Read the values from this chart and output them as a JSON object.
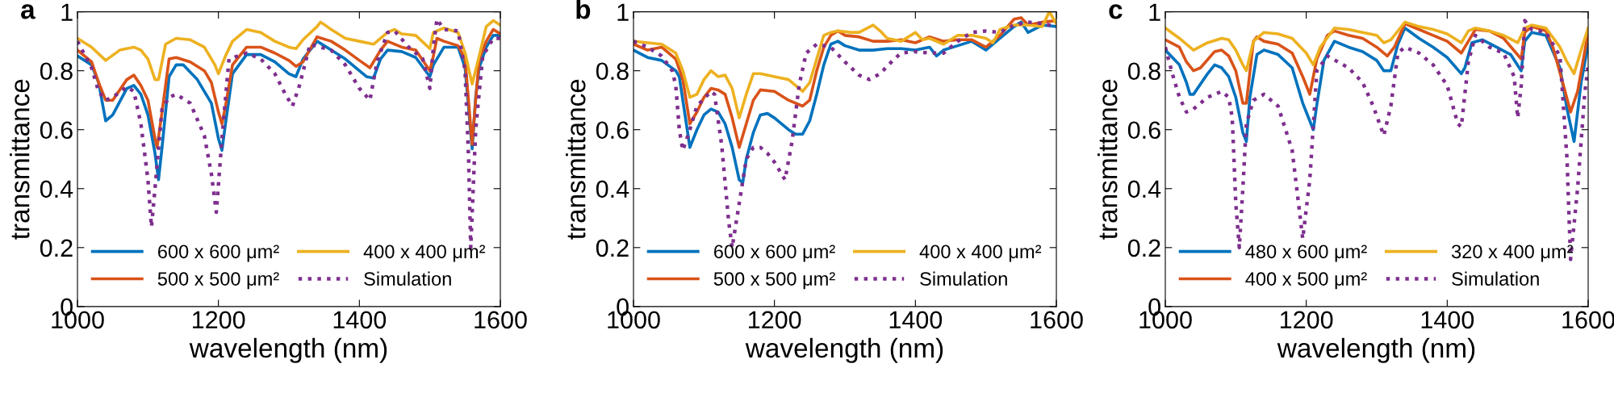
{
  "chart_data": [
    {
      "type": "line",
      "title": "a",
      "xlabel": "wavelength (nm)",
      "ylabel": "transmittance",
      "xlim": [
        1000,
        1600
      ],
      "xticks": [
        1000,
        1200,
        1400,
        1600
      ],
      "ylim": [
        0,
        1
      ],
      "yticks": [
        0,
        0.2,
        0.4,
        0.6,
        0.8,
        1
      ],
      "grid": false,
      "legend": "bottom",
      "series": [
        {
          "name": "600 x 600 μm²",
          "color": "#0072bd",
          "line_style": "solid",
          "x": [
            1000,
            1020,
            1030,
            1040,
            1050,
            1070,
            1080,
            1090,
            1100,
            1110,
            1115,
            1120,
            1130,
            1140,
            1150,
            1170,
            1190,
            1200,
            1205,
            1210,
            1220,
            1240,
            1260,
            1280,
            1300,
            1310,
            1320,
            1340,
            1360,
            1380,
            1400,
            1410,
            1420,
            1430,
            1440,
            1460,
            1480,
            1500,
            1505,
            1520,
            1540,
            1550,
            1560,
            1565,
            1570,
            1580,
            1590,
            1600
          ],
          "values": [
            0.85,
            0.82,
            0.76,
            0.63,
            0.65,
            0.74,
            0.75,
            0.72,
            0.65,
            0.52,
            0.43,
            0.54,
            0.78,
            0.82,
            0.82,
            0.77,
            0.69,
            0.57,
            0.53,
            0.62,
            0.79,
            0.855,
            0.855,
            0.83,
            0.79,
            0.78,
            0.84,
            0.9,
            0.87,
            0.84,
            0.8,
            0.78,
            0.775,
            0.84,
            0.87,
            0.865,
            0.845,
            0.78,
            0.82,
            0.88,
            0.88,
            0.81,
            0.535,
            0.71,
            0.81,
            0.88,
            0.92,
            0.92
          ]
        },
        {
          "name": "500 x 500 μm²",
          "color": "#d95319",
          "line_style": "solid",
          "x": [
            1000,
            1020,
            1030,
            1040,
            1050,
            1070,
            1080,
            1090,
            1100,
            1110,
            1113,
            1120,
            1130,
            1140,
            1160,
            1180,
            1190,
            1200,
            1205,
            1210,
            1220,
            1240,
            1260,
            1280,
            1300,
            1310,
            1320,
            1340,
            1360,
            1380,
            1400,
            1415,
            1430,
            1440,
            1460,
            1480,
            1500,
            1505,
            1510,
            1520,
            1540,
            1550,
            1560,
            1565,
            1570,
            1580,
            1590,
            1600
          ],
          "values": [
            0.87,
            0.83,
            0.76,
            0.7,
            0.7,
            0.77,
            0.785,
            0.75,
            0.7,
            0.57,
            0.54,
            0.66,
            0.84,
            0.845,
            0.83,
            0.8,
            0.76,
            0.66,
            0.62,
            0.68,
            0.82,
            0.88,
            0.88,
            0.86,
            0.835,
            0.815,
            0.83,
            0.915,
            0.9,
            0.87,
            0.835,
            0.81,
            0.87,
            0.9,
            0.88,
            0.87,
            0.8,
            0.85,
            0.91,
            0.9,
            0.885,
            0.84,
            0.55,
            0.7,
            0.84,
            0.9,
            0.94,
            0.925
          ]
        },
        {
          "name": "400 x 400 μm²",
          "color": "#edb120",
          "line_style": "solid",
          "x": [
            1000,
            1020,
            1040,
            1060,
            1080,
            1090,
            1100,
            1110,
            1115,
            1125,
            1140,
            1160,
            1180,
            1195,
            1200,
            1210,
            1220,
            1240,
            1260,
            1280,
            1300,
            1310,
            1320,
            1340,
            1345,
            1360,
            1380,
            1400,
            1420,
            1440,
            1450,
            1460,
            1480,
            1500,
            1505,
            1520,
            1540,
            1550,
            1560,
            1570,
            1580,
            1590,
            1600
          ],
          "values": [
            0.91,
            0.88,
            0.835,
            0.87,
            0.88,
            0.87,
            0.84,
            0.77,
            0.77,
            0.89,
            0.91,
            0.905,
            0.88,
            0.82,
            0.79,
            0.85,
            0.9,
            0.94,
            0.93,
            0.9,
            0.88,
            0.875,
            0.905,
            0.95,
            0.965,
            0.94,
            0.91,
            0.9,
            0.89,
            0.93,
            0.94,
            0.925,
            0.92,
            0.875,
            0.93,
            0.945,
            0.93,
            0.86,
            0.755,
            0.85,
            0.95,
            0.97,
            0.955
          ]
        },
        {
          "name": "Simulation",
          "color": "#7e2f8e",
          "line_style": "dotted",
          "x": [
            1000,
            1020,
            1030,
            1040,
            1050,
            1070,
            1080,
            1090,
            1100,
            1105,
            1110,
            1120,
            1130,
            1140,
            1160,
            1180,
            1190,
            1197,
            1205,
            1215,
            1240,
            1260,
            1280,
            1295,
            1305,
            1315,
            1330,
            1360,
            1380,
            1400,
            1415,
            1425,
            1440,
            1450,
            1470,
            1490,
            1500,
            1505,
            1510,
            1520,
            1540,
            1550,
            1555,
            1558,
            1565,
            1575,
            1590,
            1600
          ],
          "values": [
            0.9,
            0.81,
            0.73,
            0.7,
            0.71,
            0.745,
            0.73,
            0.62,
            0.43,
            0.27,
            0.4,
            0.67,
            0.71,
            0.72,
            0.69,
            0.58,
            0.45,
            0.32,
            0.57,
            0.84,
            0.86,
            0.84,
            0.79,
            0.72,
            0.68,
            0.75,
            0.89,
            0.87,
            0.82,
            0.74,
            0.7,
            0.83,
            0.93,
            0.935,
            0.88,
            0.84,
            0.74,
            0.88,
            0.975,
            0.94,
            0.935,
            0.8,
            0.5,
            0.2,
            0.6,
            0.85,
            0.91,
            0.91
          ]
        }
      ]
    },
    {
      "type": "line",
      "title": "b",
      "xlabel": "wavelength (nm)",
      "ylabel": "transmittance",
      "xlim": [
        1000,
        1600
      ],
      "xticks": [
        1000,
        1200,
        1400,
        1600
      ],
      "ylim": [
        0,
        1
      ],
      "yticks": [
        0,
        0.2,
        0.4,
        0.6,
        0.8,
        1
      ],
      "grid": false,
      "legend": "bottom",
      "series": [
        {
          "name": "600 x 600 μm²",
          "color": "#0072bd",
          "line_style": "solid",
          "x": [
            1000,
            1020,
            1040,
            1060,
            1065,
            1070,
            1080,
            1090,
            1100,
            1110,
            1120,
            1130,
            1140,
            1150,
            1155,
            1160,
            1170,
            1180,
            1190,
            1200,
            1220,
            1230,
            1240,
            1250,
            1260,
            1270,
            1280,
            1290,
            1300,
            1320,
            1340,
            1360,
            1380,
            1400,
            1420,
            1430,
            1440,
            1460,
            1480,
            1500,
            1520,
            1540,
            1550,
            1560,
            1580,
            1600
          ],
          "values": [
            0.87,
            0.845,
            0.835,
            0.8,
            0.78,
            0.7,
            0.54,
            0.6,
            0.65,
            0.67,
            0.66,
            0.62,
            0.54,
            0.43,
            0.42,
            0.5,
            0.59,
            0.65,
            0.655,
            0.64,
            0.6,
            0.585,
            0.585,
            0.63,
            0.72,
            0.82,
            0.89,
            0.9,
            0.885,
            0.87,
            0.87,
            0.875,
            0.875,
            0.87,
            0.88,
            0.85,
            0.87,
            0.885,
            0.9,
            0.87,
            0.91,
            0.95,
            0.965,
            0.93,
            0.955,
            0.95
          ]
        },
        {
          "name": "500 x 500 μm²",
          "color": "#d95319",
          "line_style": "solid",
          "x": [
            1000,
            1020,
            1040,
            1060,
            1070,
            1080,
            1090,
            1100,
            1110,
            1120,
            1130,
            1140,
            1150,
            1160,
            1170,
            1180,
            1200,
            1220,
            1240,
            1250,
            1260,
            1270,
            1280,
            1290,
            1300,
            1320,
            1340,
            1360,
            1380,
            1400,
            1420,
            1440,
            1460,
            1480,
            1500,
            1520,
            1540,
            1550,
            1560,
            1580,
            1600
          ],
          "values": [
            0.89,
            0.87,
            0.88,
            0.84,
            0.77,
            0.62,
            0.66,
            0.71,
            0.74,
            0.735,
            0.72,
            0.64,
            0.54,
            0.62,
            0.7,
            0.735,
            0.73,
            0.7,
            0.68,
            0.7,
            0.8,
            0.88,
            0.92,
            0.935,
            0.92,
            0.915,
            0.9,
            0.9,
            0.905,
            0.895,
            0.915,
            0.9,
            0.905,
            0.905,
            0.88,
            0.92,
            0.975,
            0.98,
            0.955,
            0.965,
            0.97
          ]
        },
        {
          "name": "400 x 400 μm²",
          "color": "#edb120",
          "line_style": "solid",
          "x": [
            1000,
            1020,
            1040,
            1060,
            1070,
            1080,
            1090,
            1100,
            1110,
            1120,
            1130,
            1140,
            1150,
            1160,
            1170,
            1180,
            1200,
            1220,
            1240,
            1250,
            1260,
            1270,
            1280,
            1290,
            1310,
            1320,
            1340,
            1350,
            1360,
            1380,
            1400,
            1410,
            1420,
            1440,
            1460,
            1480,
            1500,
            1510,
            1520,
            1540,
            1560,
            1580,
            1590,
            1600
          ],
          "values": [
            0.9,
            0.895,
            0.89,
            0.86,
            0.8,
            0.71,
            0.72,
            0.77,
            0.8,
            0.78,
            0.785,
            0.74,
            0.64,
            0.72,
            0.79,
            0.79,
            0.78,
            0.77,
            0.73,
            0.76,
            0.84,
            0.92,
            0.93,
            0.935,
            0.93,
            0.93,
            0.955,
            0.935,
            0.91,
            0.9,
            0.93,
            0.905,
            0.91,
            0.89,
            0.92,
            0.92,
            0.91,
            0.895,
            0.94,
            0.955,
            0.955,
            0.95,
            1.0,
            0.96
          ]
        },
        {
          "name": "Simulation",
          "color": "#7e2f8e",
          "line_style": "dotted",
          "x": [
            1000,
            1020,
            1040,
            1055,
            1060,
            1065,
            1070,
            1080,
            1090,
            1110,
            1115,
            1125,
            1135,
            1140,
            1150,
            1160,
            1170,
            1180,
            1190,
            1200,
            1210,
            1215,
            1225,
            1235,
            1245,
            1260,
            1280,
            1300,
            1320,
            1335,
            1350,
            1370,
            1380,
            1400,
            1420,
            1440,
            1460,
            1480,
            1500,
            1520,
            1540,
            1560,
            1580,
            1600
          ],
          "values": [
            0.9,
            0.88,
            0.85,
            0.8,
            0.75,
            0.6,
            0.53,
            0.6,
            0.68,
            0.73,
            0.72,
            0.55,
            0.29,
            0.2,
            0.35,
            0.5,
            0.54,
            0.54,
            0.52,
            0.49,
            0.45,
            0.43,
            0.56,
            0.75,
            0.86,
            0.89,
            0.88,
            0.83,
            0.785,
            0.77,
            0.79,
            0.84,
            0.86,
            0.865,
            0.86,
            0.86,
            0.9,
            0.93,
            0.935,
            0.93,
            0.955,
            0.965,
            0.96,
            0.95
          ]
        }
      ]
    },
    {
      "type": "line",
      "title": "c",
      "xlabel": "wavelength (nm)",
      "ylabel": "transmittance",
      "xlim": [
        1000,
        1600
      ],
      "xticks": [
        1000,
        1200,
        1400,
        1600
      ],
      "ylim": [
        0,
        1
      ],
      "yticks": [
        0,
        0.2,
        0.4,
        0.6,
        0.8,
        1
      ],
      "grid": false,
      "legend": "bottom",
      "series": [
        {
          "name": "480 x 600 μm²",
          "color": "#0072bd",
          "line_style": "solid",
          "x": [
            1000,
            1020,
            1030,
            1035,
            1040,
            1060,
            1070,
            1080,
            1090,
            1100,
            1110,
            1115,
            1120,
            1130,
            1140,
            1160,
            1180,
            1195,
            1210,
            1215,
            1225,
            1240,
            1260,
            1280,
            1300,
            1310,
            1320,
            1330,
            1340,
            1360,
            1380,
            1400,
            1420,
            1425,
            1435,
            1450,
            1470,
            1490,
            1505,
            1510,
            1520,
            1540,
            1560,
            1570,
            1580,
            1590,
            1600
          ],
          "values": [
            0.87,
            0.82,
            0.76,
            0.72,
            0.72,
            0.79,
            0.82,
            0.81,
            0.78,
            0.71,
            0.59,
            0.56,
            0.71,
            0.855,
            0.87,
            0.855,
            0.81,
            0.69,
            0.6,
            0.685,
            0.835,
            0.9,
            0.88,
            0.865,
            0.835,
            0.8,
            0.8,
            0.89,
            0.945,
            0.91,
            0.88,
            0.845,
            0.79,
            0.81,
            0.895,
            0.905,
            0.88,
            0.855,
            0.8,
            0.9,
            0.93,
            0.92,
            0.81,
            0.67,
            0.56,
            0.76,
            0.89
          ]
        },
        {
          "name": "400 x 500 μm²",
          "color": "#d95319",
          "line_style": "solid",
          "x": [
            1000,
            1020,
            1030,
            1040,
            1050,
            1070,
            1080,
            1090,
            1100,
            1110,
            1115,
            1125,
            1130,
            1140,
            1160,
            1180,
            1195,
            1205,
            1215,
            1230,
            1240,
            1260,
            1280,
            1300,
            1315,
            1325,
            1340,
            1360,
            1380,
            1400,
            1420,
            1430,
            1440,
            1460,
            1480,
            1505,
            1510,
            1520,
            1540,
            1550,
            1565,
            1575,
            1585,
            1600
          ],
          "values": [
            0.905,
            0.88,
            0.83,
            0.8,
            0.81,
            0.865,
            0.87,
            0.85,
            0.8,
            0.69,
            0.69,
            0.9,
            0.915,
            0.9,
            0.89,
            0.86,
            0.78,
            0.72,
            0.84,
            0.92,
            0.935,
            0.92,
            0.91,
            0.88,
            0.85,
            0.88,
            0.96,
            0.94,
            0.92,
            0.9,
            0.86,
            0.9,
            0.94,
            0.935,
            0.91,
            0.84,
            0.93,
            0.95,
            0.935,
            0.88,
            0.75,
            0.66,
            0.73,
            0.93
          ]
        },
        {
          "name": "320 x 400 μm²",
          "color": "#edb120",
          "line_style": "solid",
          "x": [
            1000,
            1020,
            1040,
            1060,
            1080,
            1090,
            1100,
            1110,
            1115,
            1125,
            1140,
            1160,
            1180,
            1200,
            1210,
            1220,
            1240,
            1260,
            1280,
            1300,
            1310,
            1320,
            1340,
            1360,
            1380,
            1400,
            1420,
            1430,
            1440,
            1460,
            1480,
            1500,
            1510,
            1520,
            1540,
            1560,
            1570,
            1580,
            1590,
            1600
          ],
          "values": [
            0.945,
            0.91,
            0.87,
            0.895,
            0.91,
            0.905,
            0.87,
            0.82,
            0.8,
            0.9,
            0.93,
            0.925,
            0.91,
            0.86,
            0.82,
            0.88,
            0.945,
            0.94,
            0.93,
            0.92,
            0.895,
            0.905,
            0.965,
            0.95,
            0.94,
            0.925,
            0.895,
            0.935,
            0.945,
            0.935,
            0.92,
            0.895,
            0.945,
            0.955,
            0.945,
            0.88,
            0.83,
            0.79,
            0.87,
            0.945
          ]
        },
        {
          "name": "Simulation",
          "color": "#7e2f8e",
          "line_style": "dotted",
          "x": [
            1000,
            1010,
            1020,
            1030,
            1040,
            1060,
            1080,
            1090,
            1095,
            1100,
            1105,
            1110,
            1115,
            1125,
            1140,
            1160,
            1180,
            1190,
            1195,
            1205,
            1215,
            1230,
            1260,
            1280,
            1295,
            1310,
            1320,
            1330,
            1340,
            1360,
            1380,
            1400,
            1415,
            1420,
            1430,
            1440,
            1460,
            1480,
            1495,
            1500,
            1505,
            1510,
            1520,
            1540,
            1560,
            1570,
            1575,
            1585,
            1595,
            1600
          ],
          "values": [
            0.88,
            0.79,
            0.71,
            0.66,
            0.67,
            0.71,
            0.73,
            0.71,
            0.64,
            0.35,
            0.2,
            0.4,
            0.62,
            0.7,
            0.72,
            0.68,
            0.53,
            0.33,
            0.23,
            0.43,
            0.8,
            0.85,
            0.81,
            0.76,
            0.68,
            0.58,
            0.68,
            0.86,
            0.88,
            0.86,
            0.82,
            0.75,
            0.62,
            0.61,
            0.83,
            0.92,
            0.88,
            0.86,
            0.78,
            0.64,
            0.75,
            0.97,
            0.94,
            0.93,
            0.85,
            0.5,
            0.16,
            0.4,
            0.72,
            0.82
          ]
        }
      ]
    }
  ]
}
